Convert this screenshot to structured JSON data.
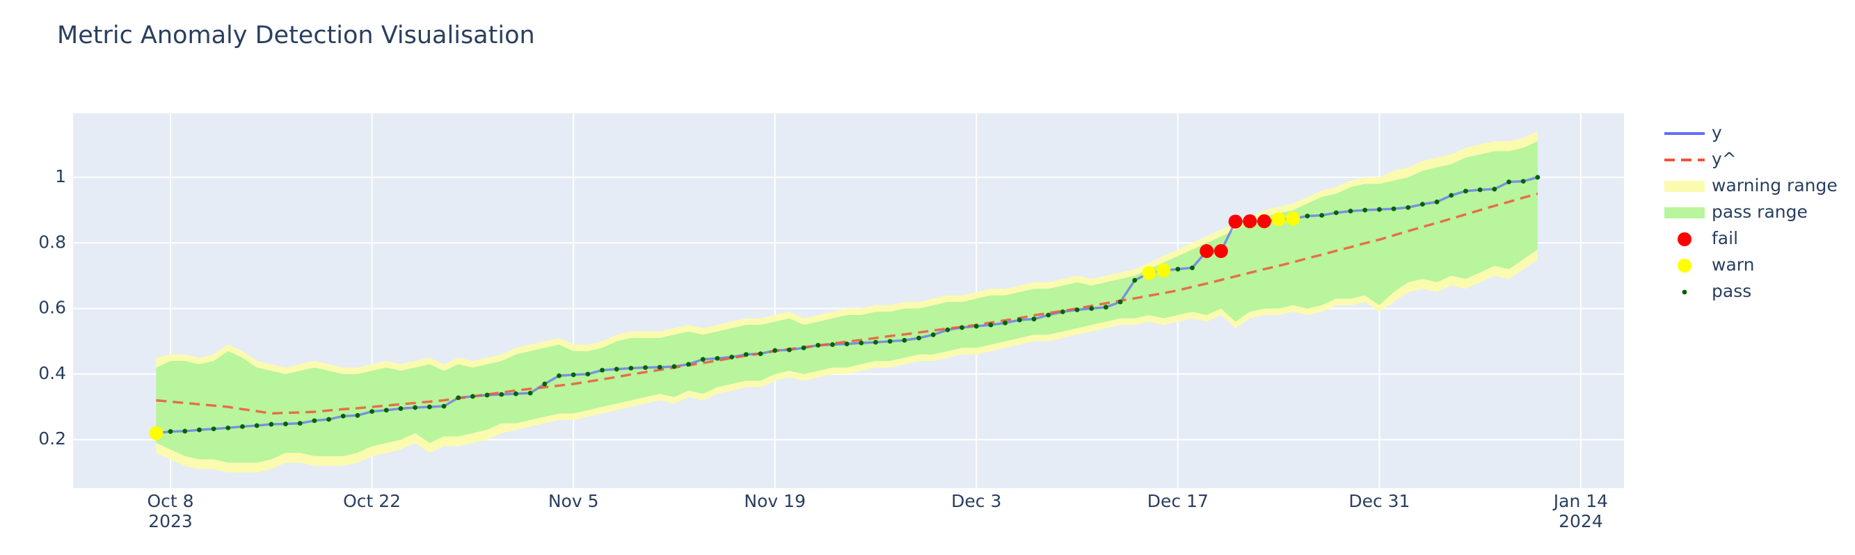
{
  "chart_data": {
    "type": "anomaly",
    "title": "Metric Anomaly Detection Visualisation",
    "x": [
      "2023-10-07",
      "2023-10-08",
      "2023-10-09",
      "2023-10-10",
      "2023-10-11",
      "2023-10-12",
      "2023-10-13",
      "2023-10-14",
      "2023-10-15",
      "2023-10-16",
      "2023-10-17",
      "2023-10-18",
      "2023-10-19",
      "2023-10-20",
      "2023-10-21",
      "2023-10-22",
      "2023-10-23",
      "2023-10-24",
      "2023-10-25",
      "2023-10-26",
      "2023-10-27",
      "2023-10-28",
      "2023-10-29",
      "2023-10-30",
      "2023-10-31",
      "2023-11-01",
      "2023-11-02",
      "2023-11-03",
      "2023-11-04",
      "2023-11-05",
      "2023-11-06",
      "2023-11-07",
      "2023-11-08",
      "2023-11-09",
      "2023-11-10",
      "2023-11-11",
      "2023-11-12",
      "2023-11-13",
      "2023-11-14",
      "2023-11-15",
      "2023-11-16",
      "2023-11-17",
      "2023-11-18",
      "2023-11-19",
      "2023-11-20",
      "2023-11-21",
      "2023-11-22",
      "2023-11-23",
      "2023-11-24",
      "2023-11-25",
      "2023-11-26",
      "2023-11-27",
      "2023-11-28",
      "2023-11-29",
      "2023-11-30",
      "2023-12-01",
      "2023-12-02",
      "2023-12-03",
      "2023-12-04",
      "2023-12-05",
      "2023-12-06",
      "2023-12-07",
      "2023-12-08",
      "2023-12-09",
      "2023-12-10",
      "2023-12-11",
      "2023-12-12",
      "2023-12-13",
      "2023-12-14",
      "2023-12-15",
      "2023-12-16",
      "2023-12-17",
      "2023-12-18",
      "2023-12-19",
      "2023-12-20",
      "2023-12-21",
      "2023-12-22",
      "2023-12-23",
      "2023-12-24",
      "2023-12-25",
      "2023-12-26",
      "2023-12-27",
      "2023-12-28",
      "2023-12-29",
      "2023-12-30",
      "2023-12-31",
      "2024-01-01",
      "2024-01-02",
      "2024-01-03",
      "2024-01-04",
      "2024-01-05",
      "2024-01-06",
      "2024-01-07",
      "2024-01-08",
      "2024-01-09",
      "2024-01-10",
      "2024-01-11"
    ],
    "series": [
      {
        "name": "y",
        "color": "#636efa",
        "values": [
          0.22,
          0.225,
          0.226,
          0.23,
          0.233,
          0.236,
          0.24,
          0.243,
          0.247,
          0.248,
          0.25,
          0.258,
          0.262,
          0.272,
          0.274,
          0.286,
          0.29,
          0.295,
          0.298,
          0.3,
          0.302,
          0.328,
          0.332,
          0.336,
          0.338,
          0.34,
          0.342,
          0.37,
          0.395,
          0.398,
          0.4,
          0.412,
          0.415,
          0.418,
          0.42,
          0.421,
          0.423,
          0.43,
          0.445,
          0.448,
          0.452,
          0.46,
          0.462,
          0.472,
          0.474,
          0.48,
          0.488,
          0.49,
          0.492,
          0.495,
          0.497,
          0.5,
          0.503,
          0.51,
          0.52,
          0.535,
          0.542,
          0.546,
          0.55,
          0.556,
          0.565,
          0.568,
          0.58,
          0.59,
          0.596,
          0.6,
          0.604,
          0.62,
          0.686,
          0.708,
          0.716,
          0.72,
          0.724,
          0.775,
          0.775,
          0.865,
          0.866,
          0.866,
          0.872,
          0.874,
          0.882,
          0.884,
          0.892,
          0.897,
          0.9,
          0.902,
          0.904,
          0.908,
          0.918,
          0.925,
          0.945,
          0.958,
          0.962,
          0.964,
          0.986,
          0.988,
          1.0
        ]
      },
      {
        "name": "y^",
        "color": "#ef553b",
        "dash": true,
        "values": [
          0.32,
          0.316,
          0.312,
          0.308,
          0.304,
          0.3,
          0.293,
          0.287,
          0.28,
          0.282,
          0.283,
          0.285,
          0.289,
          0.293,
          0.296,
          0.3,
          0.304,
          0.308,
          0.312,
          0.316,
          0.32,
          0.326,
          0.332,
          0.338,
          0.344,
          0.35,
          0.355,
          0.36,
          0.365,
          0.37,
          0.377,
          0.384,
          0.391,
          0.399,
          0.406,
          0.413,
          0.42,
          0.427,
          0.434,
          0.441,
          0.449,
          0.456,
          0.463,
          0.47,
          0.476,
          0.482,
          0.487,
          0.493,
          0.499,
          0.504,
          0.51,
          0.516,
          0.521,
          0.527,
          0.533,
          0.539,
          0.544,
          0.55,
          0.557,
          0.564,
          0.571,
          0.579,
          0.586,
          0.593,
          0.6,
          0.608,
          0.616,
          0.624,
          0.631,
          0.639,
          0.647,
          0.655,
          0.666,
          0.676,
          0.687,
          0.698,
          0.709,
          0.72,
          0.73,
          0.741,
          0.753,
          0.764,
          0.776,
          0.787,
          0.799,
          0.81,
          0.823,
          0.836,
          0.849,
          0.861,
          0.874,
          0.887,
          0.9,
          0.913,
          0.925,
          0.938,
          0.95
        ]
      },
      {
        "name": "warning range",
        "color": "#fbfbb0",
        "upper": [
          0.45,
          0.46,
          0.46,
          0.45,
          0.46,
          0.49,
          0.47,
          0.44,
          0.43,
          0.42,
          0.43,
          0.44,
          0.43,
          0.42,
          0.42,
          0.43,
          0.44,
          0.43,
          0.44,
          0.45,
          0.43,
          0.45,
          0.44,
          0.45,
          0.46,
          0.48,
          0.49,
          0.5,
          0.51,
          0.49,
          0.49,
          0.5,
          0.52,
          0.53,
          0.53,
          0.53,
          0.54,
          0.55,
          0.54,
          0.55,
          0.56,
          0.57,
          0.57,
          0.58,
          0.59,
          0.57,
          0.58,
          0.59,
          0.6,
          0.6,
          0.61,
          0.61,
          0.62,
          0.62,
          0.63,
          0.64,
          0.64,
          0.65,
          0.66,
          0.66,
          0.67,
          0.68,
          0.68,
          0.69,
          0.7,
          0.69,
          0.7,
          0.71,
          0.72,
          0.74,
          0.76,
          0.78,
          0.8,
          0.82,
          0.84,
          0.86,
          0.88,
          0.9,
          0.91,
          0.92,
          0.94,
          0.96,
          0.97,
          0.99,
          1.0,
          1.0,
          1.02,
          1.03,
          1.05,
          1.06,
          1.07,
          1.09,
          1.1,
          1.11,
          1.11,
          1.12,
          1.14
        ],
        "lower": [
          0.16,
          0.14,
          0.12,
          0.11,
          0.11,
          0.1,
          0.1,
          0.1,
          0.11,
          0.13,
          0.13,
          0.12,
          0.12,
          0.12,
          0.13,
          0.15,
          0.16,
          0.17,
          0.19,
          0.16,
          0.18,
          0.18,
          0.19,
          0.2,
          0.22,
          0.23,
          0.24,
          0.25,
          0.26,
          0.26,
          0.27,
          0.28,
          0.29,
          0.3,
          0.31,
          0.32,
          0.31,
          0.33,
          0.32,
          0.34,
          0.35,
          0.36,
          0.36,
          0.38,
          0.39,
          0.38,
          0.39,
          0.4,
          0.4,
          0.41,
          0.42,
          0.42,
          0.43,
          0.44,
          0.44,
          0.45,
          0.46,
          0.46,
          0.47,
          0.48,
          0.49,
          0.5,
          0.5,
          0.51,
          0.52,
          0.53,
          0.54,
          0.55,
          0.55,
          0.56,
          0.55,
          0.56,
          0.57,
          0.56,
          0.58,
          0.54,
          0.57,
          0.58,
          0.58,
          0.59,
          0.58,
          0.59,
          0.61,
          0.61,
          0.62,
          0.59,
          0.62,
          0.65,
          0.66,
          0.65,
          0.67,
          0.66,
          0.68,
          0.7,
          0.69,
          0.72,
          0.75
        ]
      },
      {
        "name": "pass range",
        "color": "#b8f59c",
        "upper": [
          0.42,
          0.44,
          0.44,
          0.43,
          0.44,
          0.47,
          0.45,
          0.42,
          0.41,
          0.4,
          0.41,
          0.42,
          0.41,
          0.4,
          0.4,
          0.41,
          0.42,
          0.41,
          0.42,
          0.43,
          0.41,
          0.43,
          0.42,
          0.43,
          0.44,
          0.46,
          0.47,
          0.48,
          0.49,
          0.47,
          0.47,
          0.48,
          0.5,
          0.51,
          0.51,
          0.51,
          0.52,
          0.53,
          0.52,
          0.53,
          0.54,
          0.55,
          0.55,
          0.56,
          0.57,
          0.55,
          0.56,
          0.57,
          0.58,
          0.58,
          0.59,
          0.59,
          0.6,
          0.6,
          0.61,
          0.62,
          0.62,
          0.63,
          0.64,
          0.64,
          0.65,
          0.66,
          0.66,
          0.67,
          0.68,
          0.67,
          0.68,
          0.69,
          0.7,
          0.72,
          0.74,
          0.76,
          0.78,
          0.8,
          0.82,
          0.84,
          0.86,
          0.88,
          0.89,
          0.9,
          0.92,
          0.94,
          0.95,
          0.97,
          0.98,
          0.98,
          0.99,
          1.0,
          1.02,
          1.03,
          1.04,
          1.06,
          1.07,
          1.08,
          1.08,
          1.09,
          1.11
        ],
        "lower": [
          0.19,
          0.17,
          0.15,
          0.14,
          0.14,
          0.13,
          0.13,
          0.13,
          0.14,
          0.16,
          0.16,
          0.15,
          0.15,
          0.15,
          0.16,
          0.18,
          0.19,
          0.2,
          0.22,
          0.19,
          0.21,
          0.21,
          0.22,
          0.23,
          0.25,
          0.25,
          0.26,
          0.27,
          0.28,
          0.28,
          0.29,
          0.3,
          0.31,
          0.32,
          0.33,
          0.34,
          0.33,
          0.35,
          0.34,
          0.36,
          0.37,
          0.38,
          0.38,
          0.4,
          0.41,
          0.4,
          0.41,
          0.42,
          0.42,
          0.43,
          0.44,
          0.44,
          0.45,
          0.46,
          0.46,
          0.47,
          0.48,
          0.48,
          0.49,
          0.5,
          0.51,
          0.52,
          0.52,
          0.53,
          0.54,
          0.55,
          0.56,
          0.57,
          0.57,
          0.58,
          0.57,
          0.58,
          0.59,
          0.58,
          0.6,
          0.56,
          0.59,
          0.6,
          0.6,
          0.61,
          0.6,
          0.61,
          0.63,
          0.63,
          0.64,
          0.61,
          0.65,
          0.68,
          0.69,
          0.68,
          0.7,
          0.69,
          0.71,
          0.73,
          0.72,
          0.75,
          0.78
        ]
      }
    ],
    "status": [
      "warn",
      "pass",
      "pass",
      "pass",
      "pass",
      "pass",
      "pass",
      "pass",
      "pass",
      "pass",
      "pass",
      "pass",
      "pass",
      "pass",
      "pass",
      "pass",
      "pass",
      "pass",
      "pass",
      "pass",
      "pass",
      "pass",
      "pass",
      "pass",
      "pass",
      "pass",
      "pass",
      "pass",
      "pass",
      "pass",
      "pass",
      "pass",
      "pass",
      "pass",
      "pass",
      "pass",
      "pass",
      "pass",
      "pass",
      "pass",
      "pass",
      "pass",
      "pass",
      "pass",
      "pass",
      "pass",
      "pass",
      "pass",
      "pass",
      "pass",
      "pass",
      "pass",
      "pass",
      "pass",
      "pass",
      "pass",
      "pass",
      "pass",
      "pass",
      "pass",
      "pass",
      "pass",
      "pass",
      "pass",
      "pass",
      "pass",
      "pass",
      "pass",
      "pass",
      "warn",
      "warn",
      "pass",
      "pass",
      "fail",
      "fail",
      "fail",
      "fail",
      "fail",
      "warn",
      "warn",
      "pass",
      "pass",
      "pass",
      "pass",
      "pass",
      "pass",
      "pass",
      "pass",
      "pass",
      "pass",
      "pass",
      "pass",
      "pass",
      "pass",
      "pass",
      "pass",
      "pass"
    ],
    "status_styles": [
      {
        "name": "fail",
        "color": "#ff0000"
      },
      {
        "name": "warn",
        "color": "#ffff00"
      },
      {
        "name": "pass",
        "color": "#006400"
      }
    ],
    "xlim": [
      "2023-10-01T05:30",
      "2024-01-17T00:00"
    ],
    "xticks": [
      {
        "value": "2023-10-08",
        "label": "Oct 8"
      },
      {
        "value": "2023-10-22",
        "label": "Oct 22"
      },
      {
        "value": "2023-11-05",
        "label": "Nov 5"
      },
      {
        "value": "2023-11-19",
        "label": "Nov 19"
      },
      {
        "value": "2023-12-03",
        "label": "Dec 3"
      },
      {
        "value": "2023-12-17",
        "label": "Dec 17"
      },
      {
        "value": "2023-12-31",
        "label": "Dec 31"
      },
      {
        "value": "2024-01-14",
        "label": "Jan 14"
      }
    ],
    "xtick_years": [
      {
        "value": "2023-10-08",
        "label": "2023"
      },
      {
        "value": "2024-01-14",
        "label": "2024"
      }
    ],
    "ylim": [
      0.052,
      1.195
    ],
    "yticks": [
      0.2,
      0.4,
      0.6,
      0.8,
      1
    ],
    "grid": true
  }
}
